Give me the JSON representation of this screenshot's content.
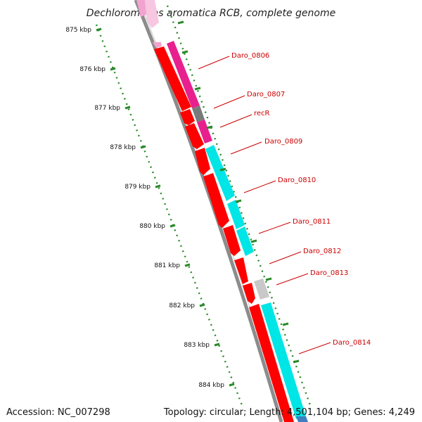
{
  "title": "Dechloromonas aromatica RCB, complete genome",
  "footer": {
    "accession": "Accession: NC_007298",
    "topology": "Topology: circular; Length: 4,501,104 bp; Genes: 4,249"
  },
  "ticks": [
    "875 kbp",
    "876 kbp",
    "877 kbp",
    "878 kbp",
    "879 kbp",
    "880 kbp",
    "881 kbp",
    "882 kbp",
    "883 kbp",
    "884 kbp"
  ],
  "genes": [
    {
      "name": "Daro_0806",
      "color": "#e8208e"
    },
    {
      "name": "Daro_0807",
      "color": "#7a7a7a"
    },
    {
      "name": "recR",
      "color": "#e8208e"
    },
    {
      "name": "Daro_0809",
      "color": "#00e5e5"
    },
    {
      "name": "Daro_0810",
      "color": "#00e5e5"
    },
    {
      "name": "Daro_0811",
      "color": "#00e5e5"
    },
    {
      "name": "Daro_0812",
      "color": "#ff0000"
    },
    {
      "name": "Daro_0813",
      "color": "#c8c8c8"
    },
    {
      "name": "Daro_0814",
      "color": "#00e5e5"
    }
  ],
  "colors": {
    "cds": "#ff0000",
    "backbone": "#8c8c8c",
    "tick_marks": "#2a8a2a",
    "label": "#cc0000"
  }
}
